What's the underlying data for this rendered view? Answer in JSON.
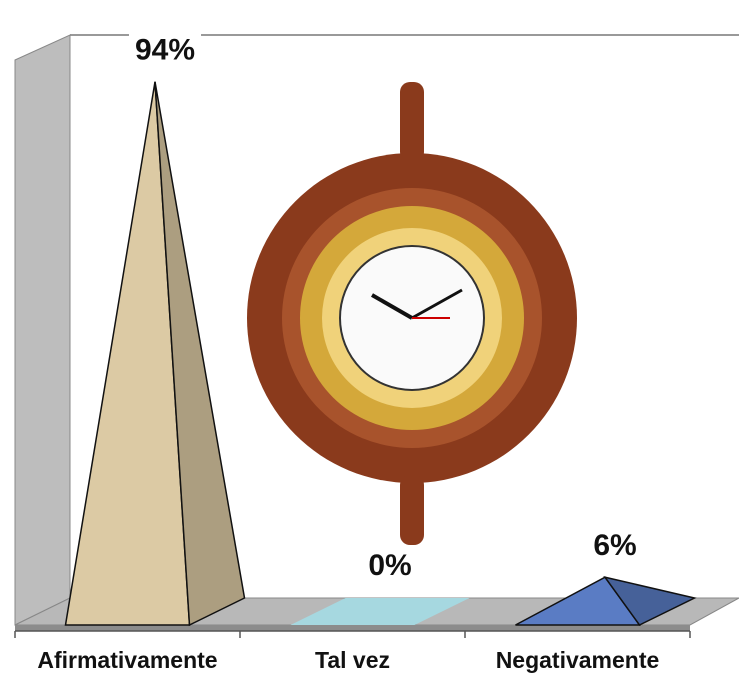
{
  "chart_data": {
    "type": "pyramid",
    "categories": [
      "Afirmativamente",
      "Tal vez",
      "Negativamente"
    ],
    "values": [
      94,
      0,
      6
    ],
    "value_labels": [
      "94%",
      "0%",
      "6%"
    ],
    "colors": [
      "#dccaa4",
      "#a6d8e0",
      "#5a7cc4"
    ],
    "ylim": [
      0,
      100
    ]
  }
}
